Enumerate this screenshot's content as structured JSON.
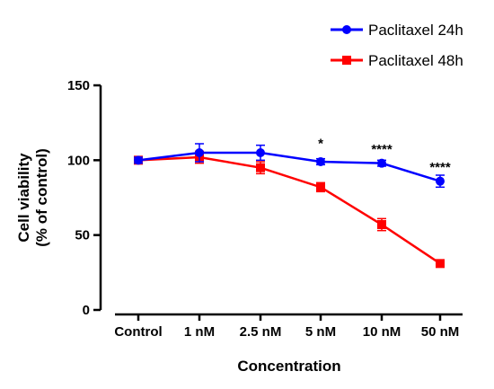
{
  "chart_data": {
    "type": "line",
    "xlabel": "Concentration",
    "ylabel_line1": "Cell viability",
    "ylabel_line2": "(% of control)",
    "categories": [
      "Control",
      "1 nM",
      "2.5 nM",
      "5 nM",
      "10 nM",
      "50 nM"
    ],
    "ylim": [
      0,
      150
    ],
    "yticks": [
      0,
      50,
      100,
      150
    ],
    "grid": false,
    "legend_position": "top-right",
    "series": [
      {
        "name": "Paclitaxel 24h",
        "color": "#0000ff",
        "marker": "circle",
        "values": [
          100,
          105,
          105,
          99,
          98,
          86
        ],
        "errors": [
          2,
          6,
          5,
          2,
          2,
          4
        ]
      },
      {
        "name": "Paclitaxel 48h",
        "color": "#ff0000",
        "marker": "square",
        "values": [
          100,
          102,
          95,
          82,
          57,
          31
        ],
        "errors": [
          2,
          4,
          4,
          3,
          4,
          1
        ]
      }
    ],
    "annotations": [
      {
        "category": "5 nM",
        "text": "*",
        "y": 112
      },
      {
        "category": "10 nM",
        "text": "****",
        "y": 108
      },
      {
        "category": "50 nM",
        "text": "****",
        "y": 96
      }
    ]
  }
}
